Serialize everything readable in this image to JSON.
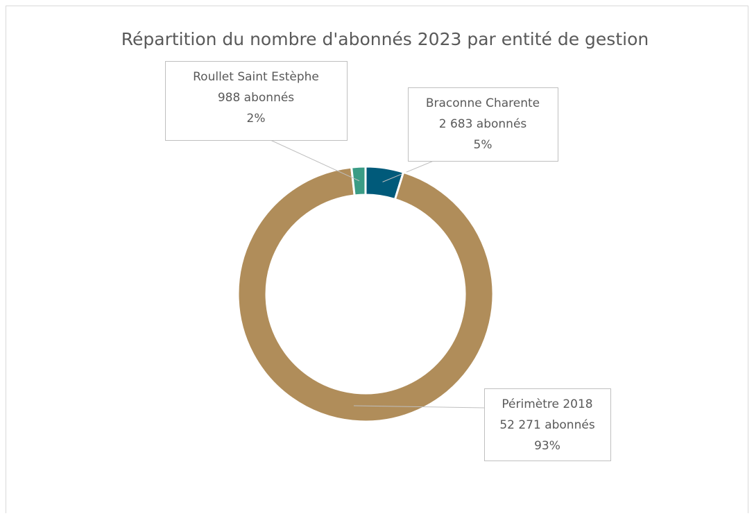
{
  "chart_data": {
    "type": "doughnut",
    "title": "Répartition du nombre d'abonnés 2023 par entité de gestion",
    "categories": [
      "Braconne Charente",
      "Périmètre 2018",
      "Roullet Saint Estèphe"
    ],
    "values": [
      2683,
      52271,
      988
    ],
    "value_labels": [
      "2 683 abonnés",
      "52 271 abonnés",
      "988 abonnés"
    ],
    "percent_labels": [
      "5%",
      "93%",
      "2%"
    ],
    "colors": [
      "#005a7a",
      "#b08d5a",
      "#3a9c85"
    ]
  }
}
